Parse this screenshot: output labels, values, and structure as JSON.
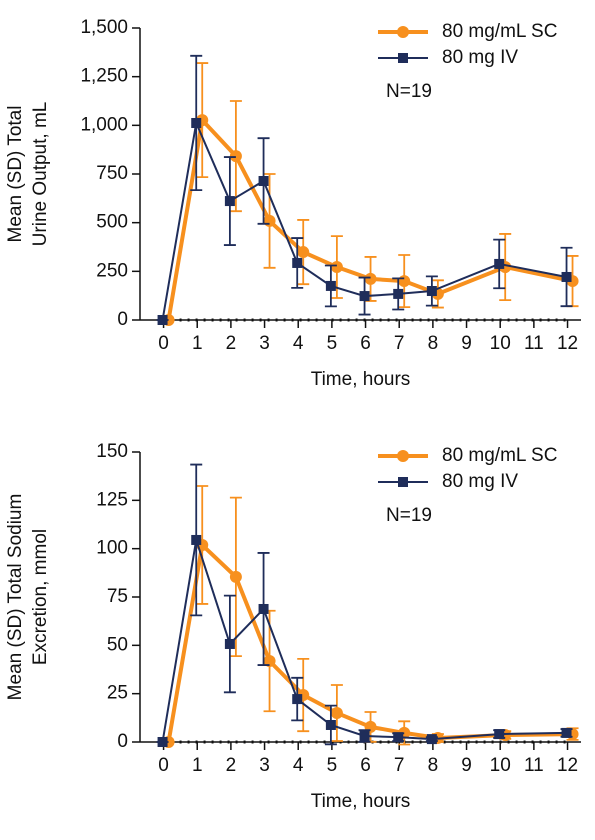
{
  "chart_data": [
    {
      "type": "line",
      "y_label": [
        "Mean (SD) Total",
        "Urine Output, mL"
      ],
      "x_label": "Time, hours",
      "annotation": "N=19",
      "legend": "upper right",
      "xlim": [
        -0.7,
        12.4
      ],
      "xticks": [
        0,
        1,
        2,
        3,
        4,
        5,
        6,
        7,
        8,
        9,
        10,
        11,
        12
      ],
      "ylim": [
        0,
        1500
      ],
      "yticks": [
        0,
        250,
        500,
        750,
        {
          "value": 1000,
          "label": "1,000"
        },
        {
          "value": 1250,
          "label": "1,250"
        },
        {
          "value": 1500,
          "label": "1,500"
        }
      ],
      "series": [
        {
          "name": "80 mg/mL SC",
          "color": "#f7901e",
          "marker": "circle",
          "x": [
            0,
            1,
            2,
            3,
            4,
            5,
            6,
            7,
            8,
            10,
            12
          ],
          "values": [
            0,
            1027,
            842,
            509,
            349,
            272,
            211,
            200,
            134,
            272,
            200
          ],
          "errors": [
            0,
            293,
            283,
            241,
            165,
            159,
            113,
            134,
            70,
            170,
            129
          ]
        },
        {
          "name": "80 mg IV",
          "color": "#1f2d5a",
          "marker": "square",
          "x": [
            0,
            1,
            2,
            3,
            4,
            5,
            6,
            7,
            8,
            10,
            12
          ],
          "values": [
            0,
            1012,
            611,
            714,
            293,
            175,
            123,
            134,
            149,
            288,
            221
          ],
          "errors": [
            0,
            345,
            226,
            220,
            128,
            105,
            95,
            80,
            75,
            125,
            150
          ]
        }
      ]
    },
    {
      "type": "line",
      "y_label": [
        "Mean (SD) Total Sodium",
        "Excretion, mmol"
      ],
      "x_label": "Time, hours",
      "annotation": "N=19",
      "legend": "upper right",
      "xlim": [
        -0.7,
        12.4
      ],
      "xticks": [
        0,
        1,
        2,
        3,
        4,
        5,
        6,
        7,
        8,
        9,
        10,
        11,
        12
      ],
      "ylim": [
        0,
        150
      ],
      "yticks": [
        0,
        25,
        50,
        75,
        100,
        125,
        150
      ],
      "series": [
        {
          "name": "80 mg/mL SC",
          "color": "#f7901e",
          "marker": "circle",
          "x": [
            0,
            1,
            2,
            3,
            4,
            5,
            6,
            7,
            8,
            10,
            12
          ],
          "values": [
            0,
            101.9,
            85.4,
            41.9,
            24.3,
            15,
            7.8,
            4.7,
            2.1,
            3.6,
            4.1
          ],
          "errors": [
            0,
            30.5,
            41,
            26,
            18.7,
            14.5,
            7.7,
            6,
            2,
            2,
            3
          ]
        },
        {
          "name": "80 mg IV",
          "color": "#1f2d5a",
          "marker": "square",
          "x": [
            0,
            1,
            2,
            3,
            4,
            5,
            6,
            7,
            8,
            10,
            12
          ],
          "values": [
            0,
            104.5,
            50.7,
            68.8,
            22.2,
            8.8,
            3.1,
            2.5,
            1.5,
            4.1,
            4.7
          ],
          "errors": [
            0,
            39,
            25,
            29,
            11,
            10,
            3,
            2,
            1,
            2,
            2
          ]
        }
      ]
    }
  ]
}
